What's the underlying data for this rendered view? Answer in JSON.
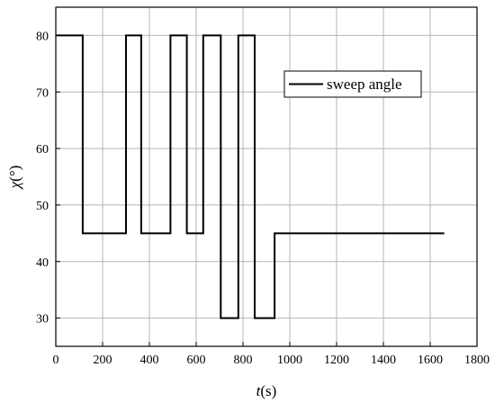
{
  "chart_data": {
    "type": "line",
    "title": "",
    "xlabel": {
      "symbol": "t",
      "unit": "(s)"
    },
    "ylabel": {
      "symbol": "χ",
      "unit": "(°)"
    },
    "xlim": [
      0,
      1800
    ],
    "ylim": [
      25,
      85
    ],
    "xticks": [
      0,
      200,
      400,
      600,
      800,
      1000,
      1200,
      1400,
      1600,
      1800
    ],
    "yticks": [
      30,
      40,
      50,
      60,
      70,
      80
    ],
    "grid": true,
    "legend": {
      "position": "top-right",
      "entries": [
        "sweep angle"
      ]
    },
    "series": [
      {
        "name": "sweep angle",
        "color": "#000000",
        "step": true,
        "x": [
          0,
          115,
          115,
          300,
          300,
          365,
          365,
          490,
          490,
          560,
          560,
          630,
          630,
          705,
          705,
          780,
          780,
          850,
          850,
          935,
          935,
          1660
        ],
        "y": [
          80,
          80,
          45,
          45,
          80,
          80,
          45,
          45,
          80,
          80,
          45,
          45,
          80,
          80,
          30,
          30,
          80,
          80,
          30,
          30,
          45,
          45
        ]
      }
    ]
  }
}
